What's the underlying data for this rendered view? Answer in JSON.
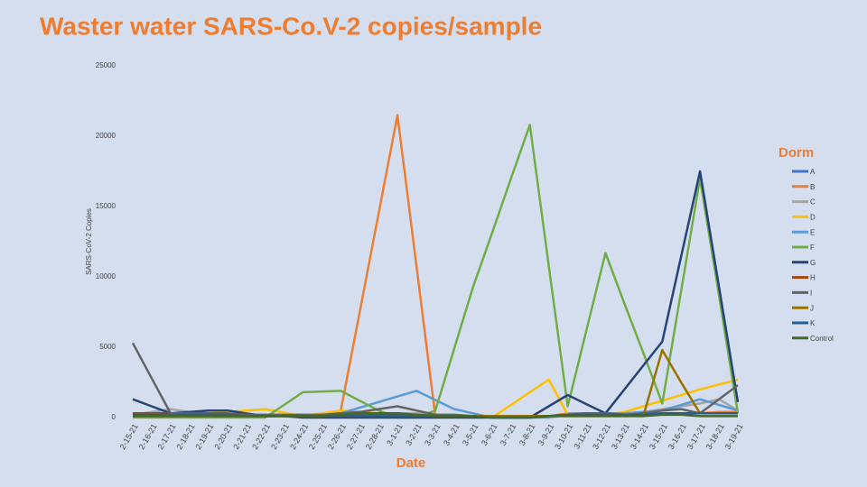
{
  "chart_data": {
    "type": "line",
    "title": "Waster water SARS-Co.V-2 copies/sample",
    "y_label": "SARS-CoV-2 Copies",
    "x_label": "Date",
    "legend_title": "Dorm",
    "legend_position": "right",
    "categories": [
      "2-15-21",
      "2-16-21",
      "2-17-21",
      "2-18-21",
      "2-19-21",
      "2-20-21",
      "2-21-21",
      "2-22-21",
      "2-23-21",
      "2-24-21",
      "2-25-21",
      "2-26-21",
      "2-27-21",
      "2-28-21",
      "3-1-21",
      "3-2-21",
      "3-3-21",
      "3-4-21",
      "3-5-21",
      "3-6-21",
      "3-7-21",
      "3-8-21",
      "3-9-21",
      "3-10-21",
      "3-11-21",
      "3-12-21",
      "3-13-21",
      "3-14-21",
      "3-15-21",
      "3-16-21",
      "3-17-21",
      "3-18-21",
      "3-19-21"
    ],
    "ylim": [
      0,
      25000
    ],
    "yticks": [
      0,
      5000,
      10000,
      15000,
      20000,
      25000
    ],
    "series": [
      {
        "name": "A",
        "color": "#4472c4",
        "values": [
          200,
          200,
          200,
          200,
          200,
          200,
          100,
          100,
          100,
          100,
          100,
          100,
          100,
          100,
          100,
          100,
          100,
          100,
          100,
          0,
          0,
          0,
          100,
          200,
          200,
          200,
          200,
          300,
          300,
          300,
          300,
          300,
          300
        ]
      },
      {
        "name": "B",
        "color": "#ed7d31",
        "values": [
          200,
          200,
          300,
          300,
          300,
          300,
          200,
          100,
          100,
          100,
          200,
          500,
          7500,
          14500,
          21500,
          10800,
          100,
          100,
          100,
          100,
          100,
          100,
          100,
          300,
          300,
          200,
          200,
          300,
          300,
          300,
          300,
          400,
          400
        ]
      },
      {
        "name": "C",
        "color": "#a5a5a5",
        "values": [
          200,
          400,
          600,
          400,
          300,
          200,
          200,
          200,
          200,
          200,
          200,
          300,
          300,
          300,
          300,
          300,
          200,
          200,
          100,
          100,
          100,
          100,
          100,
          200,
          200,
          200,
          200,
          400,
          600,
          800,
          1000,
          1300,
          500
        ]
      },
      {
        "name": "D",
        "color": "#ffc000",
        "values": [
          300,
          300,
          300,
          300,
          300,
          400,
          500,
          600,
          350,
          100,
          300,
          500,
          400,
          300,
          200,
          150,
          100,
          100,
          100,
          0,
          900,
          1800,
          2700,
          200,
          200,
          200,
          400,
          800,
          1200,
          1600,
          2000,
          2350,
          2700
        ]
      },
      {
        "name": "E",
        "color": "#5b9bd5",
        "values": [
          200,
          200,
          300,
          300,
          300,
          200,
          100,
          100,
          100,
          100,
          100,
          300,
          700,
          1100,
          1500,
          1900,
          1250,
          600,
          300,
          0,
          0,
          0,
          0,
          200,
          300,
          300,
          300,
          400,
          500,
          900,
          1300,
          900,
          500
        ]
      },
      {
        "name": "F",
        "color": "#70ad47",
        "values": [
          0,
          0,
          0,
          0,
          0,
          0,
          0,
          0,
          900,
          1800,
          1850,
          1900,
          1200,
          500,
          0,
          0,
          500,
          4900,
          9300,
          13100,
          17000,
          20800,
          10800,
          800,
          6250,
          11700,
          8100,
          4600,
          1000,
          9000,
          17000,
          8700,
          300
        ]
      },
      {
        "name": "G",
        "color": "#264478",
        "values": [
          1300,
          800,
          300,
          400,
          500,
          500,
          300,
          100,
          100,
          0,
          0,
          0,
          0,
          0,
          0,
          0,
          0,
          0,
          0,
          0,
          0,
          0,
          800,
          1600,
          950,
          300,
          2000,
          3700,
          5400,
          11450,
          17500,
          9300,
          1100
        ]
      },
      {
        "name": "H",
        "color": "#9e480e",
        "values": [
          300,
          300,
          300,
          200,
          200,
          200,
          200,
          100,
          100,
          100,
          100,
          200,
          200,
          200,
          200,
          200,
          100,
          100,
          100,
          100,
          100,
          100,
          100,
          200,
          300,
          300,
          200,
          200,
          300,
          300,
          300,
          300,
          300
        ]
      },
      {
        "name": "I",
        "color": "#636363",
        "values": [
          5300,
          2800,
          300,
          300,
          300,
          300,
          200,
          200,
          200,
          200,
          200,
          300,
          400,
          600,
          800,
          500,
          200,
          200,
          100,
          100,
          100,
          100,
          100,
          200,
          300,
          300,
          200,
          300,
          500,
          600,
          300,
          1300,
          2300
        ]
      },
      {
        "name": "J",
        "color": "#997300",
        "values": [
          100,
          100,
          100,
          100,
          100,
          100,
          100,
          100,
          100,
          100,
          100,
          100,
          100,
          100,
          100,
          100,
          100,
          100,
          100,
          100,
          100,
          100,
          100,
          100,
          100,
          100,
          100,
          100,
          4800,
          2500,
          300,
          300,
          300
        ]
      },
      {
        "name": "K",
        "color": "#255e91",
        "values": [
          200,
          200,
          200,
          200,
          200,
          200,
          100,
          100,
          100,
          100,
          100,
          100,
          100,
          100,
          100,
          100,
          100,
          100,
          100,
          0,
          0,
          0,
          100,
          200,
          200,
          200,
          200,
          200,
          300,
          300,
          300,
          300,
          300
        ]
      },
      {
        "name": "Control",
        "color": "#43682b",
        "values": [
          100,
          100,
          100,
          100,
          100,
          100,
          100,
          100,
          100,
          100,
          100,
          200,
          300,
          300,
          300,
          200,
          100,
          100,
          100,
          0,
          0,
          0,
          100,
          100,
          100,
          100,
          100,
          100,
          200,
          200,
          100,
          100,
          100
        ]
      }
    ]
  }
}
